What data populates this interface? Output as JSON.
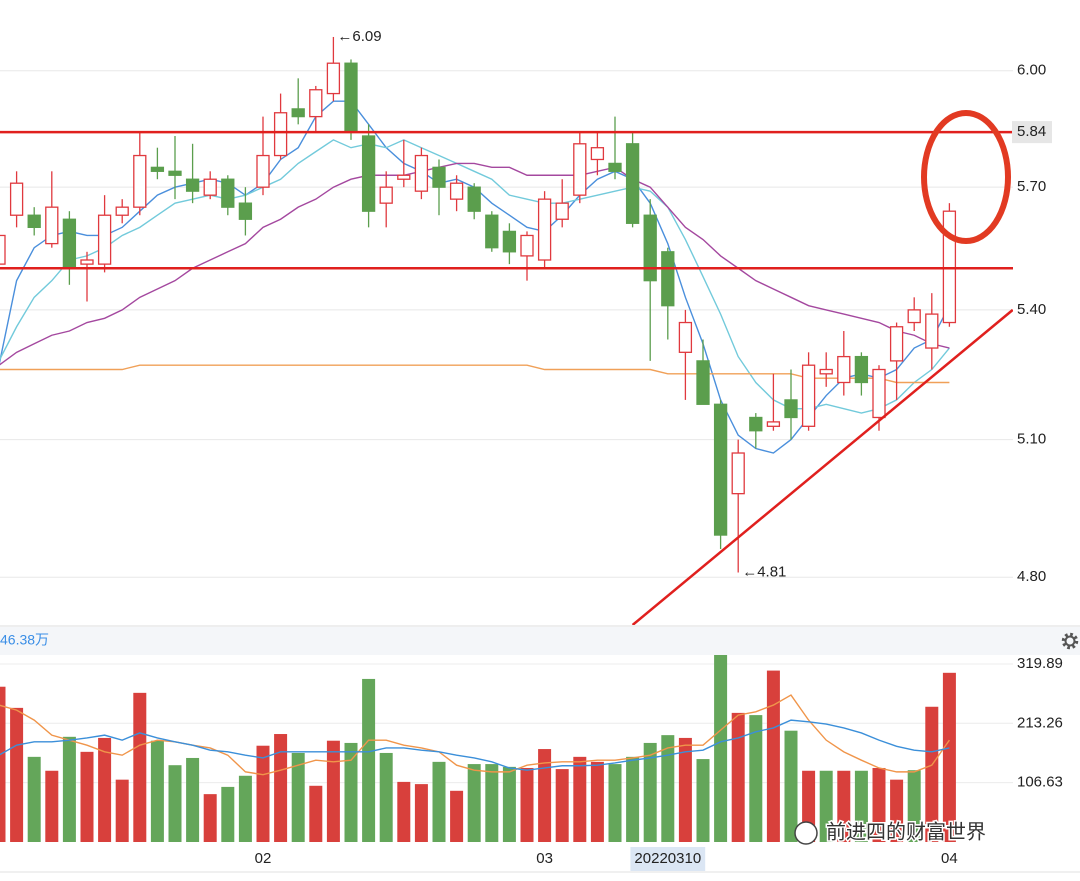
{
  "watermark": "前进四的财富世界",
  "chart_data": [
    {
      "type": "candlestick",
      "log_scale": true,
      "grid": true,
      "up_color": "#e0393e",
      "down_color": "#5b9e4d",
      "ylim": [
        4.7,
        6.19
      ],
      "yticks": [
        {
          "value": 4.8,
          "label": "4.80"
        },
        {
          "value": 5.1,
          "label": "5.10"
        },
        {
          "value": 5.4,
          "label": "5.40"
        },
        {
          "value": 5.7,
          "label": "5.70"
        },
        {
          "value": 6.0,
          "label": "6.00"
        }
      ],
      "open": [
        5.51,
        5.63,
        5.63,
        5.56,
        5.62,
        5.51,
        5.51,
        5.63,
        5.65,
        5.75,
        5.74,
        5.72,
        5.68,
        5.72,
        5.66,
        5.7,
        5.78,
        5.9,
        5.88,
        5.94,
        6.02,
        5.83,
        5.66,
        5.72,
        5.69,
        5.75,
        5.67,
        5.7,
        5.63,
        5.59,
        5.53,
        5.52,
        5.62,
        5.68,
        5.77,
        5.76,
        5.81,
        5.63,
        5.54,
        5.3,
        5.28,
        5.18,
        4.98,
        5.15,
        5.13,
        5.19,
        5.13,
        5.25,
        5.23,
        5.29,
        5.15,
        5.28,
        5.37,
        5.31,
        5.37
      ],
      "high": [
        5.6,
        5.74,
        5.65,
        5.74,
        5.64,
        5.54,
        5.68,
        5.67,
        5.84,
        5.8,
        5.83,
        5.81,
        5.74,
        5.73,
        5.7,
        5.88,
        5.94,
        5.98,
        5.96,
        6.09,
        6.03,
        5.86,
        5.74,
        5.82,
        5.8,
        5.77,
        5.73,
        5.71,
        5.64,
        5.61,
        5.59,
        5.69,
        5.72,
        5.84,
        5.84,
        5.88,
        5.84,
        5.67,
        5.55,
        5.4,
        5.33,
        5.19,
        5.1,
        5.16,
        5.25,
        5.26,
        5.3,
        5.3,
        5.35,
        5.3,
        5.27,
        5.37,
        5.43,
        5.44,
        5.66
      ],
      "low": [
        5.5,
        5.6,
        5.58,
        5.55,
        5.46,
        5.42,
        5.49,
        5.61,
        5.63,
        5.72,
        5.67,
        5.66,
        5.67,
        5.63,
        5.58,
        5.68,
        5.77,
        5.86,
        5.84,
        5.92,
        5.82,
        5.6,
        5.6,
        5.7,
        5.67,
        5.63,
        5.64,
        5.62,
        5.54,
        5.51,
        5.47,
        5.5,
        5.6,
        5.66,
        5.73,
        5.72,
        5.6,
        5.28,
        5.33,
        5.19,
        5.18,
        4.86,
        4.81,
        5.08,
        5.12,
        5.1,
        5.12,
        5.22,
        5.2,
        5.2,
        5.12,
        5.19,
        5.35,
        5.26,
        5.36
      ],
      "close": [
        5.58,
        5.71,
        5.6,
        5.65,
        5.5,
        5.52,
        5.63,
        5.65,
        5.78,
        5.74,
        5.73,
        5.69,
        5.72,
        5.65,
        5.62,
        5.78,
        5.89,
        5.88,
        5.95,
        6.02,
        5.84,
        5.64,
        5.7,
        5.73,
        5.78,
        5.7,
        5.71,
        5.64,
        5.55,
        5.54,
        5.58,
        5.67,
        5.66,
        5.81,
        5.8,
        5.74,
        5.61,
        5.47,
        5.41,
        5.37,
        5.18,
        4.89,
        5.07,
        5.12,
        5.14,
        5.15,
        5.27,
        5.26,
        5.29,
        5.23,
        5.26,
        5.36,
        5.4,
        5.39,
        5.64
      ],
      "lines": [
        {
          "color": "#4a8fdc",
          "values": [
            5.27,
            5.47,
            5.55,
            5.58,
            5.59,
            5.58,
            5.58,
            5.6,
            5.64,
            5.68,
            5.7,
            5.71,
            5.72,
            5.71,
            5.68,
            5.71,
            5.77,
            5.8,
            5.88,
            5.92,
            5.92,
            5.86,
            5.8,
            5.76,
            5.74,
            5.71,
            5.72,
            5.7,
            5.66,
            5.63,
            5.6,
            5.59,
            5.63,
            5.68,
            5.72,
            5.74,
            5.72,
            5.66,
            5.56,
            5.43,
            5.32,
            5.19,
            5.11,
            5.08,
            5.07,
            5.1,
            5.15,
            5.2,
            5.24,
            5.25,
            5.24,
            5.26,
            5.31,
            5.33,
            5.41
          ]
        },
        {
          "color": "#72cadb",
          "values": [
            5.28,
            5.36,
            5.43,
            5.47,
            5.52,
            5.53,
            5.55,
            5.58,
            5.6,
            5.63,
            5.66,
            5.67,
            5.68,
            5.67,
            5.68,
            5.7,
            5.72,
            5.76,
            5.79,
            5.82,
            5.8,
            5.81,
            5.8,
            5.82,
            5.8,
            5.78,
            5.76,
            5.74,
            5.72,
            5.68,
            5.67,
            5.66,
            5.66,
            5.67,
            5.68,
            5.69,
            5.7,
            5.69,
            5.65,
            5.57,
            5.48,
            5.39,
            5.29,
            5.23,
            5.19,
            5.17,
            5.17,
            5.18,
            5.17,
            5.16,
            5.17,
            5.19,
            5.23,
            5.26,
            5.31
          ]
        },
        {
          "color": "#a4489f",
          "values": [
            5.27,
            5.3,
            5.32,
            5.34,
            5.35,
            5.37,
            5.38,
            5.4,
            5.43,
            5.45,
            5.47,
            5.5,
            5.52,
            5.54,
            5.56,
            5.6,
            5.62,
            5.65,
            5.67,
            5.7,
            5.72,
            5.73,
            5.73,
            5.73,
            5.74,
            5.75,
            5.76,
            5.76,
            5.75,
            5.75,
            5.73,
            5.73,
            5.73,
            5.73,
            5.74,
            5.75,
            5.72,
            5.7,
            5.65,
            5.6,
            5.57,
            5.53,
            5.5,
            5.47,
            5.45,
            5.43,
            5.41,
            5.4,
            5.39,
            5.38,
            5.37,
            5.35,
            5.34,
            5.32,
            5.31
          ]
        },
        {
          "color": "#f0a058",
          "values": [
            5.26,
            5.26,
            5.26,
            5.26,
            5.26,
            5.26,
            5.26,
            5.26,
            5.27,
            5.27,
            5.27,
            5.27,
            5.27,
            5.27,
            5.27,
            5.27,
            5.27,
            5.27,
            5.27,
            5.27,
            5.27,
            5.27,
            5.27,
            5.27,
            5.27,
            5.27,
            5.27,
            5.27,
            5.27,
            5.27,
            5.27,
            5.26,
            5.26,
            5.26,
            5.26,
            5.26,
            5.26,
            5.26,
            5.25,
            5.25,
            5.25,
            5.25,
            5.25,
            5.25,
            5.25,
            5.25,
            5.24,
            5.24,
            5.24,
            5.24,
            5.24,
            5.23,
            5.23,
            5.23,
            5.23
          ]
        }
      ],
      "hlines": [
        {
          "value": 5.84,
          "label": "5.84",
          "color": "#e0201e"
        },
        {
          "value": 5.5,
          "color": "#e0201e"
        }
      ],
      "trendline": {
        "x": [
          36,
          57.6
        ],
        "y": [
          4.7,
          5.4
        ],
        "color": "#e0201e"
      },
      "annotations": [
        {
          "text": "←6.09",
          "value": 6.09,
          "index": 19
        },
        {
          "text": "←4.81",
          "value": 4.81,
          "index": 42
        }
      ]
    },
    {
      "type": "bar",
      "title": "46.38万",
      "grid": true,
      "ylim": [
        0,
        336
      ],
      "yticks": [
        106.63,
        213.26,
        319.89
      ],
      "categories": [
        null,
        null,
        null,
        null,
        null,
        null,
        null,
        null,
        null,
        null,
        null,
        null,
        null,
        null,
        null,
        "02",
        null,
        null,
        null,
        null,
        null,
        null,
        null,
        null,
        null,
        null,
        null,
        null,
        null,
        null,
        null,
        "03",
        null,
        null,
        null,
        null,
        null,
        null,
        "20220310",
        null,
        null,
        null,
        null,
        null,
        null,
        null,
        null,
        null,
        null,
        null,
        null,
        null,
        null,
        null,
        "04"
      ],
      "crosshair_index": 38,
      "values": [
        279,
        241,
        153,
        128,
        189,
        162,
        187,
        112,
        268,
        182,
        138,
        151,
        86,
        99,
        119,
        173,
        194,
        160,
        101,
        182,
        178,
        293,
        160,
        108,
        104,
        144,
        92,
        140,
        140,
        135,
        133,
        167,
        131,
        153,
        144,
        140,
        153,
        178,
        192,
        187,
        149,
        336,
        232,
        228,
        308,
        200,
        128,
        128,
        128,
        128,
        133,
        112,
        129,
        243,
        304
      ],
      "colors": [
        "#d8403c",
        "#d8403c",
        "#64a65a",
        "#d8403c",
        "#64a65a",
        "#d8403c",
        "#d8403c",
        "#d8403c",
        "#d8403c",
        "#64a65a",
        "#64a65a",
        "#64a65a",
        "#d8403c",
        "#64a65a",
        "#64a65a",
        "#d8403c",
        "#d8403c",
        "#64a65a",
        "#d8403c",
        "#d8403c",
        "#64a65a",
        "#64a65a",
        "#64a65a",
        "#d8403c",
        "#d8403c",
        "#64a65a",
        "#d8403c",
        "#64a65a",
        "#64a65a",
        "#64a65a",
        "#d8403c",
        "#d8403c",
        "#d8403c",
        "#d8403c",
        "#d8403c",
        "#64a65a",
        "#64a65a",
        "#64a65a",
        "#64a65a",
        "#d8403c",
        "#64a65a",
        "#64a65a",
        "#d8403c",
        "#64a65a",
        "#d8403c",
        "#64a65a",
        "#d8403c",
        "#64a65a",
        "#d8403c",
        "#64a65a",
        "#d8403c",
        "#d8403c",
        "#64a65a",
        "#d8403c",
        "#d8403c"
      ],
      "lines": [
        {
          "color": "#f0954a",
          "values": [
            246,
            237,
            219,
            192,
            183,
            174,
            162,
            156,
            174,
            183,
            180,
            174,
            169,
            156,
            126,
            121,
            129,
            138,
            147,
            144,
            147,
            183,
            183,
            174,
            169,
            162,
            138,
            129,
            126,
            126,
            138,
            142,
            144,
            144,
            147,
            147,
            151,
            156,
            169,
            174,
            174,
            201,
            228,
            234,
            246,
            264,
            219,
            183,
            162,
            147,
            133,
            126,
            126,
            138,
            183
          ]
        },
        {
          "color": "#3b8fd9",
          "values": [
            156,
            174,
            180,
            180,
            183,
            187,
            192,
            183,
            196,
            187,
            180,
            174,
            165,
            162,
            156,
            151,
            162,
            162,
            162,
            162,
            162,
            162,
            169,
            169,
            165,
            162,
            156,
            151,
            144,
            133,
            129,
            133,
            137,
            137,
            138,
            142,
            147,
            151,
            156,
            162,
            165,
            180,
            187,
            198,
            205,
            219,
            216,
            212,
            205,
            196,
            183,
            172,
            165,
            162,
            169
          ]
        }
      ]
    }
  ]
}
